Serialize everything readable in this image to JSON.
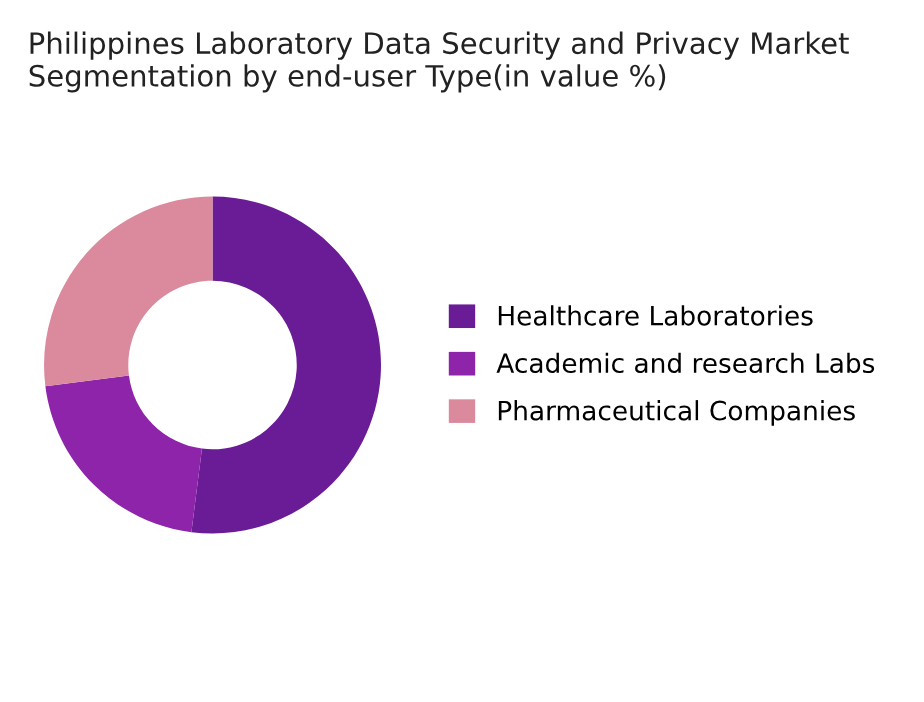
{
  "chart_data": {
    "type": "donut",
    "title": "Philippines Laboratory Data Security and Privacy Market\nSegmentation by end-user Type(in value %)",
    "categories": [
      "Healthcare Laboratories",
      "Academic and research Labs",
      "Pharmaceutical Companies"
    ],
    "values": [
      52,
      21,
      27
    ],
    "colors": [
      "#6a1b96",
      "#8e24aa",
      "#db8a9e"
    ],
    "legend": "right"
  }
}
